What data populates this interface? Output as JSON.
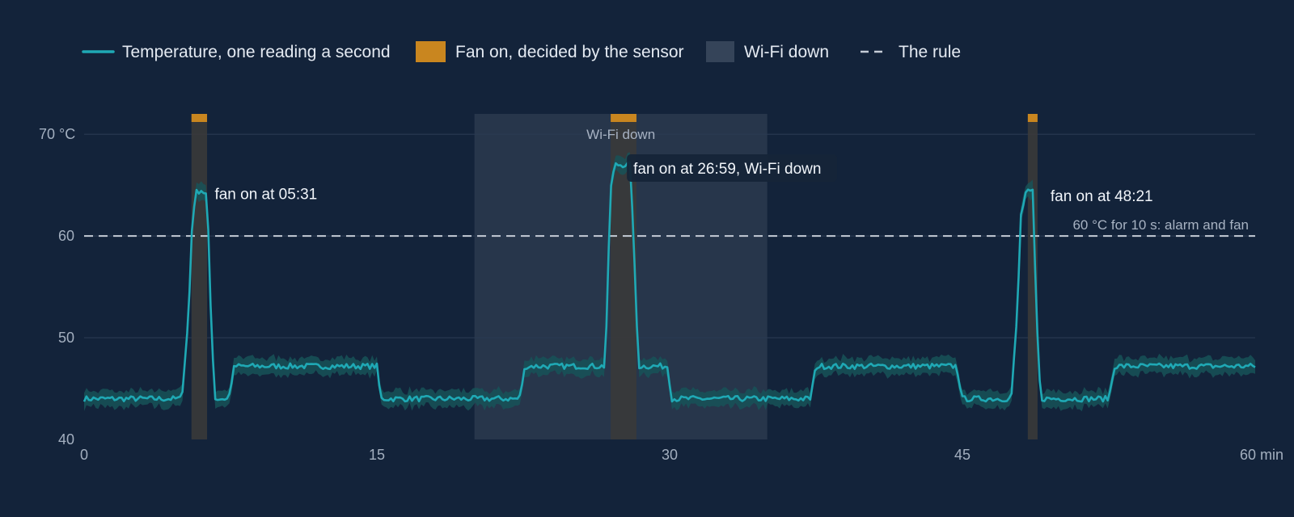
{
  "colors": {
    "background": "#13233a",
    "temperature": "#1fa9b5",
    "band": "#175258",
    "fan": "#c9861f",
    "fan_window": "#3a3a3a",
    "wifi_down": "#2c3a4f",
    "rule": "#c5ccd6",
    "grid": "#2a3a52"
  },
  "legend": [
    {
      "key": "temperature",
      "label": "Temperature, one reading a second",
      "icon": "line-swatch"
    },
    {
      "key": "fan",
      "label": "Fan on, decided by the sensor",
      "icon": "box-swatch"
    },
    {
      "key": "wifi",
      "label": "Wi-Fi down",
      "icon": "box-swatch"
    },
    {
      "key": "rule",
      "label": "The rule",
      "icon": "dashed-line-swatch"
    }
  ],
  "chart_data": {
    "type": "line",
    "xlim": [
      0,
      60
    ],
    "ylim": [
      40,
      72
    ],
    "x_ticks": [
      0,
      15,
      30,
      45,
      60
    ],
    "x_tick_labels": [
      "0",
      "15",
      "30",
      "45",
      "60 min"
    ],
    "y_ticks": [
      40,
      50,
      60,
      70
    ],
    "y_tick_labels": [
      "40",
      "50",
      "60",
      "70 °C"
    ],
    "grid": "horizontal",
    "legend_position": "top",
    "series": [
      {
        "name": "Temperature, one reading a second",
        "band_halfwidth": 0.8,
        "points": [
          [
            0,
            44.0
          ],
          [
            5.0,
            44.0
          ],
          [
            5.35,
            52.0
          ],
          [
            5.55,
            62.0
          ],
          [
            5.75,
            64.3
          ],
          [
            6.0,
            64.5
          ],
          [
            6.3,
            64.0
          ],
          [
            6.5,
            52.0
          ],
          [
            6.7,
            44.0
          ],
          [
            7.4,
            44.0
          ],
          [
            7.7,
            47.2
          ],
          [
            15.0,
            47.2
          ],
          [
            15.2,
            44.0
          ],
          [
            22.3,
            44.0
          ],
          [
            22.6,
            47.2
          ],
          [
            26.7,
            47.2
          ],
          [
            26.85,
            57.0
          ],
          [
            27.0,
            65.0
          ],
          [
            27.2,
            67.0
          ],
          [
            28.0,
            67.0
          ],
          [
            28.2,
            57.0
          ],
          [
            28.4,
            47.2
          ],
          [
            29.9,
            47.2
          ],
          [
            30.1,
            44.0
          ],
          [
            37.2,
            44.0
          ],
          [
            37.5,
            47.2
          ],
          [
            44.7,
            47.2
          ],
          [
            45.0,
            44.0
          ],
          [
            47.5,
            44.0
          ],
          [
            47.8,
            52.0
          ],
          [
            48.0,
            62.0
          ],
          [
            48.25,
            64.3
          ],
          [
            48.6,
            64.3
          ],
          [
            48.8,
            52.0
          ],
          [
            49.0,
            44.0
          ],
          [
            52.5,
            44.0
          ],
          [
            52.8,
            47.2
          ],
          [
            60.0,
            47.2
          ]
        ]
      }
    ],
    "fan_on": [
      {
        "start": 5.5,
        "end": 6.3
      },
      {
        "start": 26.98,
        "end": 28.3
      },
      {
        "start": 48.35,
        "end": 48.85
      }
    ],
    "wifi_down": {
      "start": 20.0,
      "end": 35.0,
      "label": "Wi-Fi down"
    },
    "rule": {
      "value": 60,
      "label": "60 °C for 10 s: alarm and fan"
    },
    "annotations": [
      {
        "x": 5.53,
        "y": 64.5,
        "text": "fan on at 05:31"
      },
      {
        "x": 26.98,
        "y": 67.0,
        "text": "fan on at 26:59, Wi-Fi down",
        "boxed": true
      },
      {
        "x": 48.35,
        "y": 64.3,
        "text": "fan on at 48:21"
      }
    ]
  }
}
